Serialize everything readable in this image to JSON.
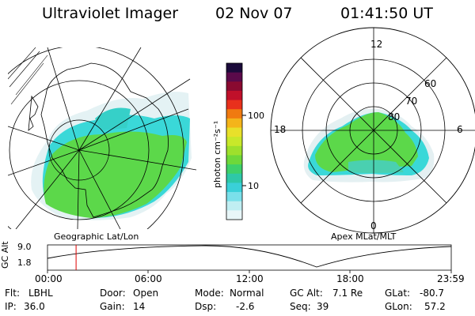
{
  "header": {
    "title": "Ultraviolet Imager",
    "date": "02 Nov 07",
    "time": "01:41:50 UT"
  },
  "colorbar": {
    "unit_label": "photon cm⁻²s⁻¹",
    "ticks": [
      "100",
      "10"
    ],
    "colors": [
      "#1a0a3a",
      "#5a0a4a",
      "#8a0a30",
      "#c0102a",
      "#e8301c",
      "#f07a10",
      "#f4b41a",
      "#e8e02a",
      "#c8e82a",
      "#9ee02c",
      "#6ed83a",
      "#3ed06a",
      "#2ec8a8",
      "#3ad0d8",
      "#7ae0ea",
      "#c0eef2",
      "#e8f6f8"
    ]
  },
  "geo_panel": {
    "caption": "Geographic Lat/Lon"
  },
  "mag_panel": {
    "caption": "Apex MLat/MLT",
    "mlt_labels": {
      "top": "12",
      "bottom": "0",
      "left": "18",
      "right": "6"
    },
    "lat_labels": [
      "60",
      "70",
      "80"
    ]
  },
  "timeline": {
    "ylabel": "GC Alt",
    "y_ticks": [
      "9.0",
      "1.8"
    ],
    "x_ticks": [
      "00:00",
      "06:00",
      "12:00",
      "18:00",
      "23:59"
    ],
    "current_time_fraction": 0.0707
  },
  "info": {
    "flt_label": "Flt:",
    "flt_value": "LBHL",
    "ip_label": "IP:",
    "ip_value": "36.0",
    "door_label": "Door:",
    "door_value": "Open",
    "gain_label": "Gain:",
    "gain_value": "14",
    "mode_label": "Mode:",
    "mode_value": "Normal",
    "dsp_label": "Dsp:",
    "dsp_value": "-2.6",
    "gcalt_label": "GC Alt:",
    "gcalt_value": "7.1 Re",
    "seq_label": "Seq:",
    "seq_value": "39",
    "glat_label": "GLat:",
    "glat_value": "-80.7",
    "glon_label": "GLon:",
    "glon_value": "57.2"
  }
}
